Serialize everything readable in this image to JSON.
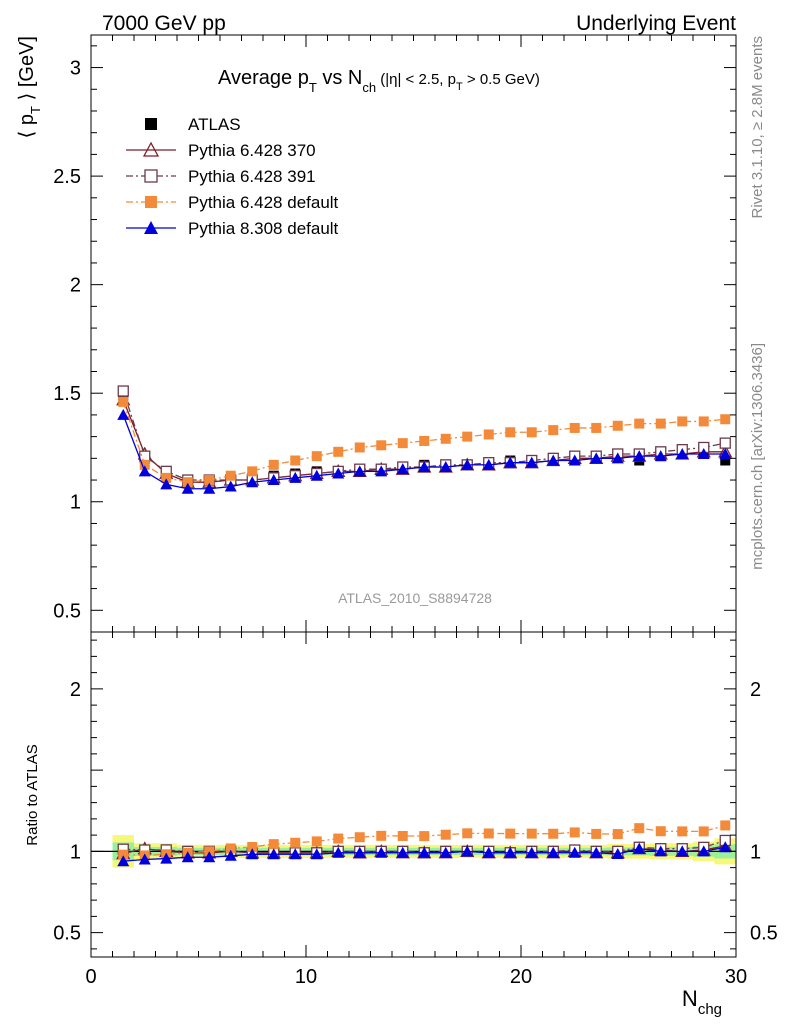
{
  "header": {
    "left": "7000 GeV pp",
    "right": "Underlying Event"
  },
  "side_text": {
    "top": "Rivet 3.1.10, ≥ 2.8M events",
    "bottom": "mcplots.cern.ch [arXiv:1306.3436]"
  },
  "chart_data": {
    "type": "line",
    "title": {
      "main": "Average p",
      "sub_T": "T",
      "vs": " vs N",
      "sub_ch": "ch",
      "cuts_a": " (|η| < 2.5, p",
      "cuts_T": "T",
      "cuts_b": " > 0.5 GeV)"
    },
    "watermark": "ATLAS_2010_S8894728",
    "xlabel": {
      "main": "N",
      "sub": "chg"
    },
    "ylabel_top": {
      "pre": "⟨ p",
      "sub": "T",
      "post": " ⟩ [GeV]"
    },
    "ylabel_bottom": "Ratio to ATLAS",
    "xlim": [
      0,
      30
    ],
    "ylim_top": [
      0.4,
      3.15
    ],
    "ylim_bottom": [
      0.35,
      2.35
    ],
    "xticks": [
      0,
      10,
      20,
      30
    ],
    "yticks_top": [
      {
        "v": 0.5,
        "label": "0.5"
      },
      {
        "v": 1,
        "label": "1"
      },
      {
        "v": 1.5,
        "label": "1.5"
      },
      {
        "v": 2,
        "label": "2"
      },
      {
        "v": 2.5,
        "label": "2.5"
      },
      {
        "v": 3,
        "label": "3"
      }
    ],
    "yticks_bottom": [
      {
        "v": 0.5,
        "label": "0.5"
      },
      {
        "v": 1,
        "label": "1"
      },
      {
        "v": 2,
        "label": "2"
      }
    ],
    "x": [
      1.5,
      2.5,
      3.5,
      4.5,
      5.5,
      6.5,
      7.5,
      8.5,
      9.5,
      10.5,
      11.5,
      12.5,
      13.5,
      14.5,
      15.5,
      16.5,
      17.5,
      18.5,
      19.5,
      20.5,
      21.5,
      22.5,
      23.5,
      24.5,
      25.5,
      26.5,
      27.5,
      28.5,
      29.5
    ],
    "band_rel_err": [
      0.1,
      0.05,
      0.05,
      0.04,
      0.04,
      0.04,
      0.04,
      0.04,
      0.04,
      0.04,
      0.04,
      0.04,
      0.04,
      0.04,
      0.04,
      0.04,
      0.04,
      0.04,
      0.04,
      0.04,
      0.04,
      0.04,
      0.04,
      0.045,
      0.045,
      0.05,
      0.05,
      0.06,
      0.08
    ],
    "series": [
      {
        "name": "ATLAS",
        "color": "#000000",
        "marker": "square-filled",
        "line": "none",
        "values": [
          1.49,
          1.2,
          1.13,
          1.1,
          1.1,
          1.1,
          1.11,
          1.12,
          1.13,
          1.14,
          1.14,
          1.15,
          1.15,
          1.16,
          1.17,
          1.17,
          1.17,
          1.18,
          1.19,
          1.19,
          1.2,
          1.2,
          1.21,
          1.22,
          1.19,
          1.21,
          1.22,
          1.22,
          1.19
        ]
      },
      {
        "name": "Pythia 6.428 370",
        "color": "#7f1d2a",
        "marker": "triangle-open",
        "line": "solid",
        "values": [
          1.47,
          1.22,
          1.13,
          1.09,
          1.09,
          1.1,
          1.1,
          1.11,
          1.12,
          1.13,
          1.14,
          1.14,
          1.15,
          1.15,
          1.16,
          1.16,
          1.17,
          1.17,
          1.18,
          1.18,
          1.19,
          1.2,
          1.2,
          1.21,
          1.21,
          1.22,
          1.22,
          1.23,
          1.23
        ]
      },
      {
        "name": "Pythia 6.428 391",
        "color": "#6b3a4a",
        "marker": "square-open",
        "line": "dashdot",
        "values": [
          1.51,
          1.21,
          1.14,
          1.1,
          1.1,
          1.1,
          1.1,
          1.11,
          1.12,
          1.13,
          1.14,
          1.15,
          1.15,
          1.16,
          1.16,
          1.17,
          1.17,
          1.18,
          1.18,
          1.19,
          1.2,
          1.21,
          1.21,
          1.22,
          1.22,
          1.23,
          1.24,
          1.25,
          1.27
        ]
      },
      {
        "name": "Pythia 6.428 default",
        "color": "#f28a3a",
        "marker": "square-filled",
        "line": "dashdot",
        "values": [
          1.46,
          1.17,
          1.11,
          1.09,
          1.1,
          1.12,
          1.14,
          1.17,
          1.19,
          1.21,
          1.23,
          1.25,
          1.26,
          1.27,
          1.28,
          1.29,
          1.3,
          1.31,
          1.32,
          1.32,
          1.33,
          1.34,
          1.34,
          1.35,
          1.36,
          1.36,
          1.37,
          1.37,
          1.38
        ]
      },
      {
        "name": "Pythia 8.308 default",
        "color": "#0000dd",
        "marker": "triangle-filled",
        "line": "solid",
        "values": [
          1.4,
          1.14,
          1.08,
          1.06,
          1.06,
          1.07,
          1.09,
          1.1,
          1.11,
          1.12,
          1.13,
          1.14,
          1.14,
          1.15,
          1.16,
          1.16,
          1.17,
          1.17,
          1.18,
          1.18,
          1.19,
          1.19,
          1.2,
          1.2,
          1.21,
          1.21,
          1.22,
          1.22,
          1.22
        ]
      }
    ]
  }
}
